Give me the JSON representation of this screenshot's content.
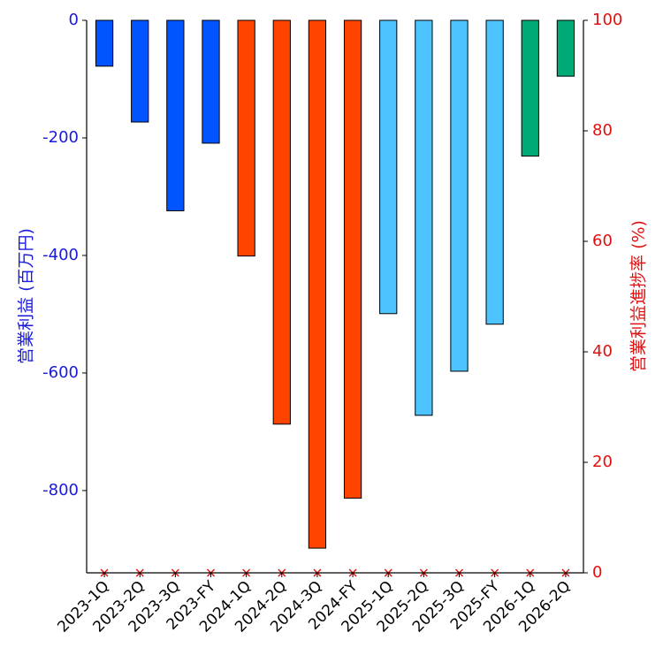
{
  "chart_data": {
    "type": "bar",
    "categories": [
      "2023-1Q",
      "2023-2Q",
      "2023-3Q",
      "2023-FY",
      "2024-1Q",
      "2024-2Q",
      "2024-3Q",
      "2024-FY",
      "2025-1Q",
      "2025-2Q",
      "2025-3Q",
      "2025-FY",
      "2026-1Q",
      "2026-2Q"
    ],
    "values": [
      -78,
      -173,
      -324,
      -209,
      -401,
      -687,
      -898,
      -813,
      -499,
      -672,
      -597,
      -517,
      -231,
      -95
    ],
    "bar_colors": [
      "#0055ff",
      "#0055ff",
      "#0055ff",
      "#0055ff",
      "#ff4400",
      "#ff4400",
      "#ff4400",
      "#ff4400",
      "#4dc3ff",
      "#4dc3ff",
      "#4dc3ff",
      "#4dc3ff",
      "#00aa77",
      "#00aa77"
    ],
    "progress_rate": [
      0,
      0,
      0,
      0,
      0,
      0,
      0,
      0,
      0,
      0,
      0,
      0,
      0,
      0
    ],
    "ylabel_left": "営業利益 (百万円)",
    "ylabel_right": "営業利益進捗率 (%)",
    "ylim_left": [
      -940,
      0
    ],
    "yticks_left": [
      0,
      -200,
      -400,
      -600,
      -800
    ],
    "ylim_right": [
      0,
      100
    ],
    "yticks_right": [
      0,
      20,
      40,
      60,
      80,
      100
    ],
    "left_axis_color": "#1a1adb",
    "right_axis_color": "#e01010",
    "marker_color": "#e01010"
  }
}
